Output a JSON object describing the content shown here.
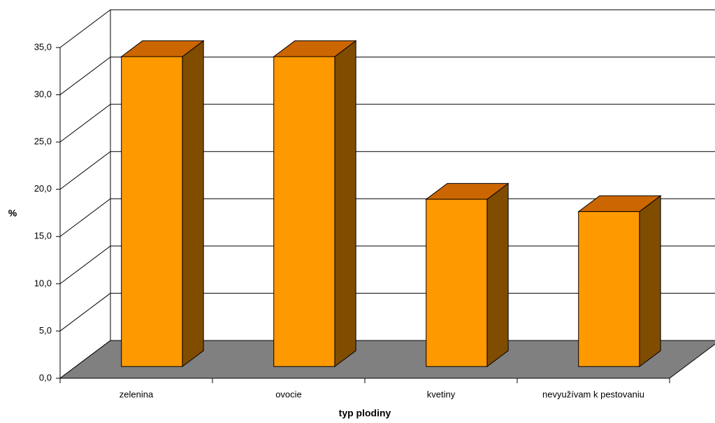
{
  "chart_data": {
    "type": "bar3d",
    "categories": [
      "zelenina",
      "ovocie",
      "kvetiny",
      "nevyužívam k pestovaniu"
    ],
    "values": [
      32.8,
      32.8,
      17.7,
      16.4
    ],
    "color": "#ff9900",
    "top_color": "#cc6600",
    "side_color": "#804c00",
    "floor_color": "#808080",
    "x_label": "typ plodiny",
    "y_label": "%",
    "ylim": [
      0,
      35
    ],
    "yticks": [
      {
        "value": 0,
        "label": "0,0"
      },
      {
        "value": 5,
        "label": "5,0"
      },
      {
        "value": 10,
        "label": "10,0"
      },
      {
        "value": 15,
        "label": "15,0"
      },
      {
        "value": 20,
        "label": "20,0"
      },
      {
        "value": 25,
        "label": "25,0"
      },
      {
        "value": 30,
        "label": "30,0"
      },
      {
        "value": 35,
        "label": "35,0"
      }
    ],
    "grid": true
  }
}
